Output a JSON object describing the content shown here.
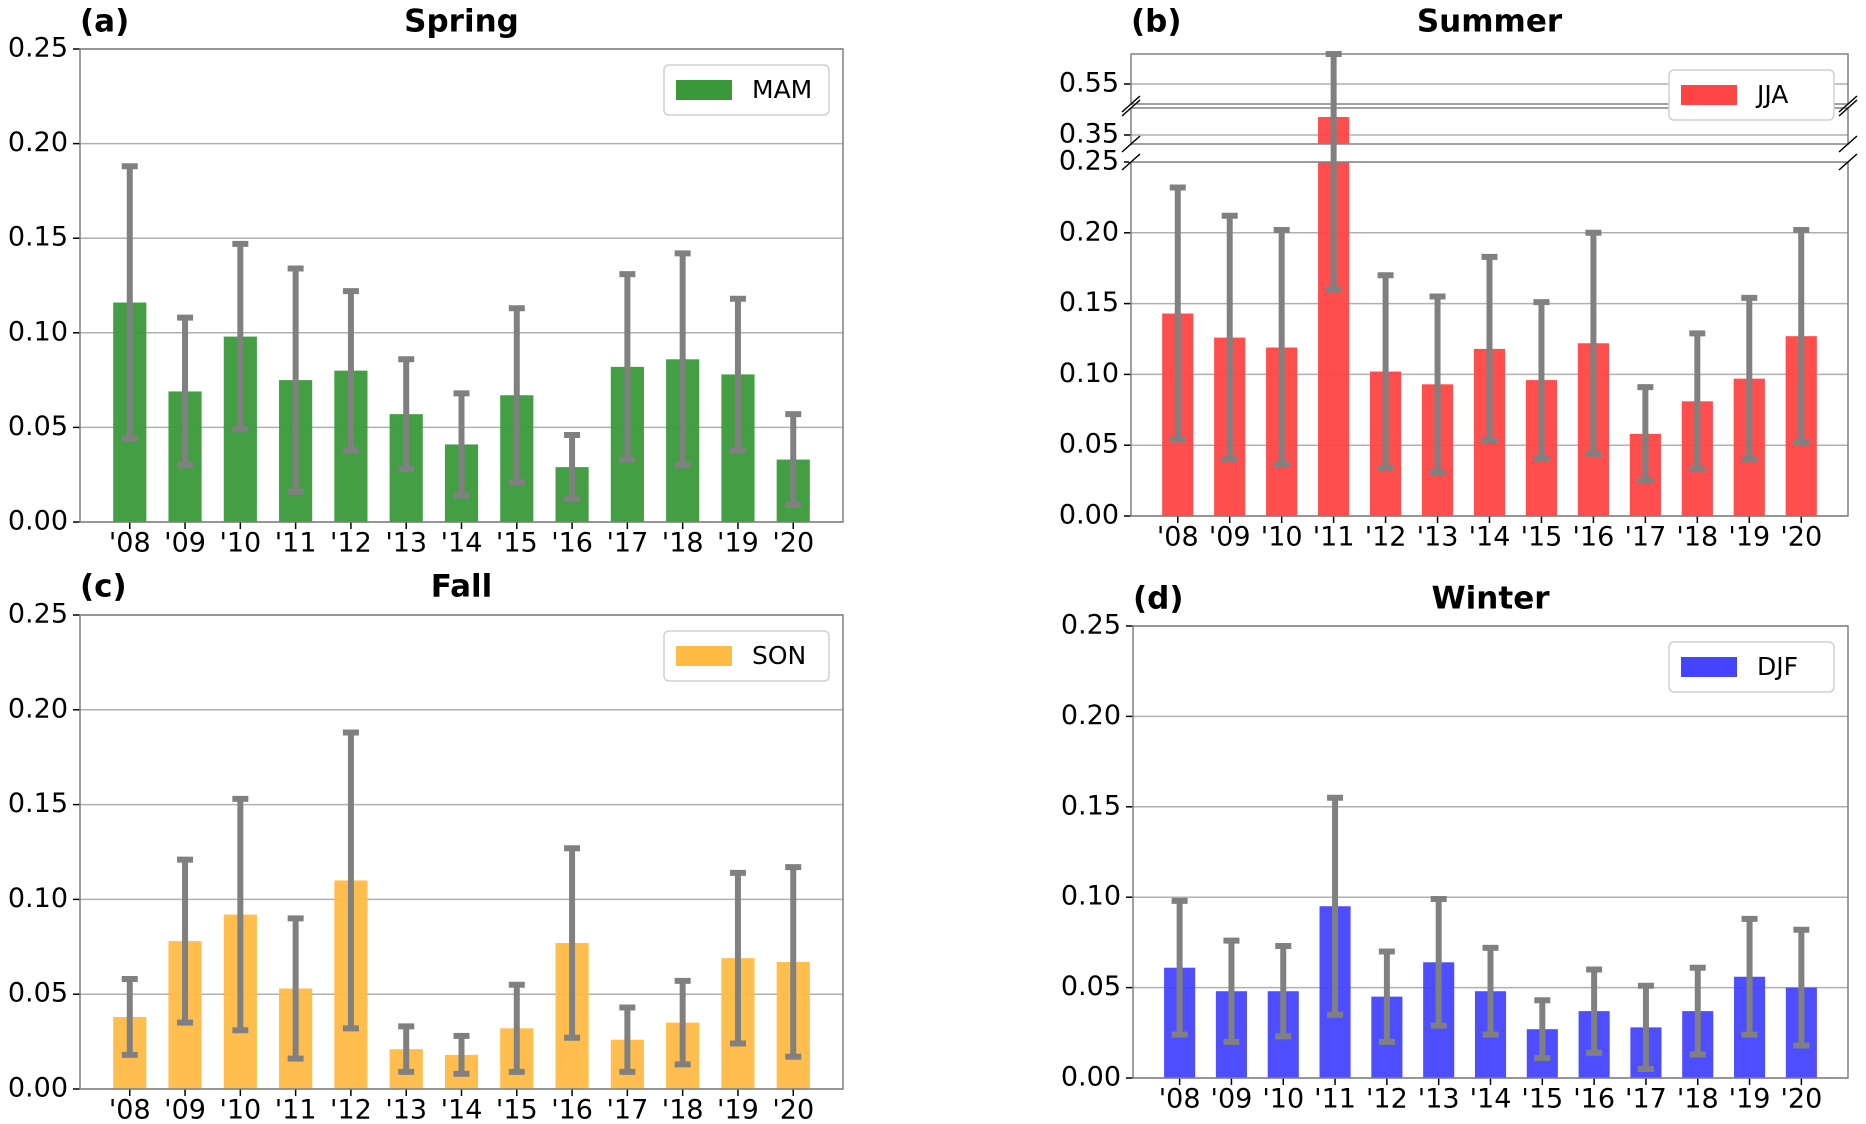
{
  "chart_data": [
    {
      "type": "bar",
      "label": "(a)",
      "title": "Spring",
      "categories": [
        "'08",
        "'09",
        "'10",
        "'11",
        "'12",
        "'13",
        "'14",
        "'15",
        "'16",
        "'17",
        "'18",
        "'19",
        "'20"
      ],
      "series": [
        {
          "name": "MAM",
          "color": "#3a9a3a",
          "values": [
            0.116,
            0.069,
            0.098,
            0.075,
            0.08,
            0.057,
            0.041,
            0.067,
            0.029,
            0.082,
            0.086,
            0.078,
            0.033
          ],
          "errors": [
            0.072,
            0.039,
            0.049,
            0.059,
            0.042,
            0.029,
            0.027,
            0.046,
            0.017,
            0.049,
            0.056,
            0.04,
            0.024
          ]
        }
      ],
      "ylim": [
        0,
        0.25
      ],
      "yticks": [
        {
          "value": 0,
          "label": "0.00"
        },
        0.05,
        {
          "value": 0.1,
          "label": "0.10"
        },
        0.15,
        {
          "value": 0.2,
          "label": "0.20"
        },
        0.25
      ],
      "grid": true,
      "legend": "upper right"
    },
    {
      "type": "bar",
      "label": "(b)",
      "title": "Summer",
      "categories": [
        "'08",
        "'09",
        "'10",
        "'11",
        "'12",
        "'13",
        "'14",
        "'15",
        "'16",
        "'17",
        "'18",
        "'19",
        "'20"
      ],
      "series": [
        {
          "name": "JJA",
          "color": "#ff4444",
          "values": [
            0.143,
            0.126,
            0.119,
            0.37,
            0.102,
            0.093,
            0.118,
            0.096,
            0.122,
            0.058,
            0.081,
            0.097,
            0.127
          ],
          "errors": [
            0.089,
            0.086,
            0.083,
            0.21,
            0.068,
            0.062,
            0.065,
            0.055,
            0.078,
            0.033,
            0.048,
            0.057,
            0.075
          ]
        }
      ],
      "ylim": [
        0,
        0.25
      ],
      "yticks": [
        {
          "value": 0,
          "label": "0.00"
        },
        0.05,
        {
          "value": 0.1,
          "label": "0.10"
        },
        0.15,
        {
          "value": 0.2,
          "label": "0.20"
        },
        0.25
      ],
      "y_breaks": [
        {
          "ylim": [
            0.34,
            0.38
          ],
          "yticks": [
            0.35
          ]
        },
        {
          "ylim": [
            0.53,
            0.58
          ],
          "yticks": [
            0.55
          ]
        }
      ],
      "grid": true,
      "legend": "upper right"
    },
    {
      "type": "bar",
      "label": "(c)",
      "title": "Fall",
      "categories": [
        "'08",
        "'09",
        "'10",
        "'11",
        "'12",
        "'13",
        "'14",
        "'15",
        "'16",
        "'17",
        "'18",
        "'19",
        "'20"
      ],
      "series": [
        {
          "name": "SON",
          "color": "#ffbb44",
          "values": [
            0.038,
            0.078,
            0.092,
            0.053,
            0.11,
            0.021,
            0.018,
            0.032,
            0.077,
            0.026,
            0.035,
            0.069,
            0.067
          ],
          "errors": [
            0.02,
            0.043,
            0.061,
            0.037,
            0.078,
            0.012,
            0.01,
            0.023,
            0.05,
            0.017,
            0.022,
            0.045,
            0.05
          ]
        }
      ],
      "ylim": [
        0,
        0.25
      ],
      "yticks": [
        {
          "value": 0,
          "label": "0.00"
        },
        0.05,
        {
          "value": 0.1,
          "label": "0.10"
        },
        0.15,
        {
          "value": 0.2,
          "label": "0.20"
        },
        0.25
      ],
      "grid": true,
      "legend": "upper right"
    },
    {
      "type": "bar",
      "label": "(d)",
      "title": "Winter",
      "categories": [
        "'08",
        "'09",
        "'10",
        "'11",
        "'12",
        "'13",
        "'14",
        "'15",
        "'16",
        "'17",
        "'18",
        "'19",
        "'20"
      ],
      "series": [
        {
          "name": "DJF",
          "color": "#4444ff",
          "values": [
            0.061,
            0.048,
            0.048,
            0.095,
            0.045,
            0.064,
            0.048,
            0.027,
            0.037,
            0.028,
            0.037,
            0.056,
            0.05
          ],
          "errors": [
            0.037,
            0.028,
            0.025,
            0.06,
            0.025,
            0.035,
            0.024,
            0.016,
            0.023,
            0.023,
            0.024,
            0.032,
            0.032
          ]
        }
      ],
      "ylim": [
        0,
        0.25
      ],
      "yticks": [
        {
          "value": 0,
          "label": "0.00"
        },
        0.05,
        {
          "value": 0.1,
          "label": "0.10"
        },
        0.15,
        {
          "value": 0.2,
          "label": "0.20"
        },
        0.25
      ],
      "grid": true,
      "legend": "upper right"
    }
  ]
}
